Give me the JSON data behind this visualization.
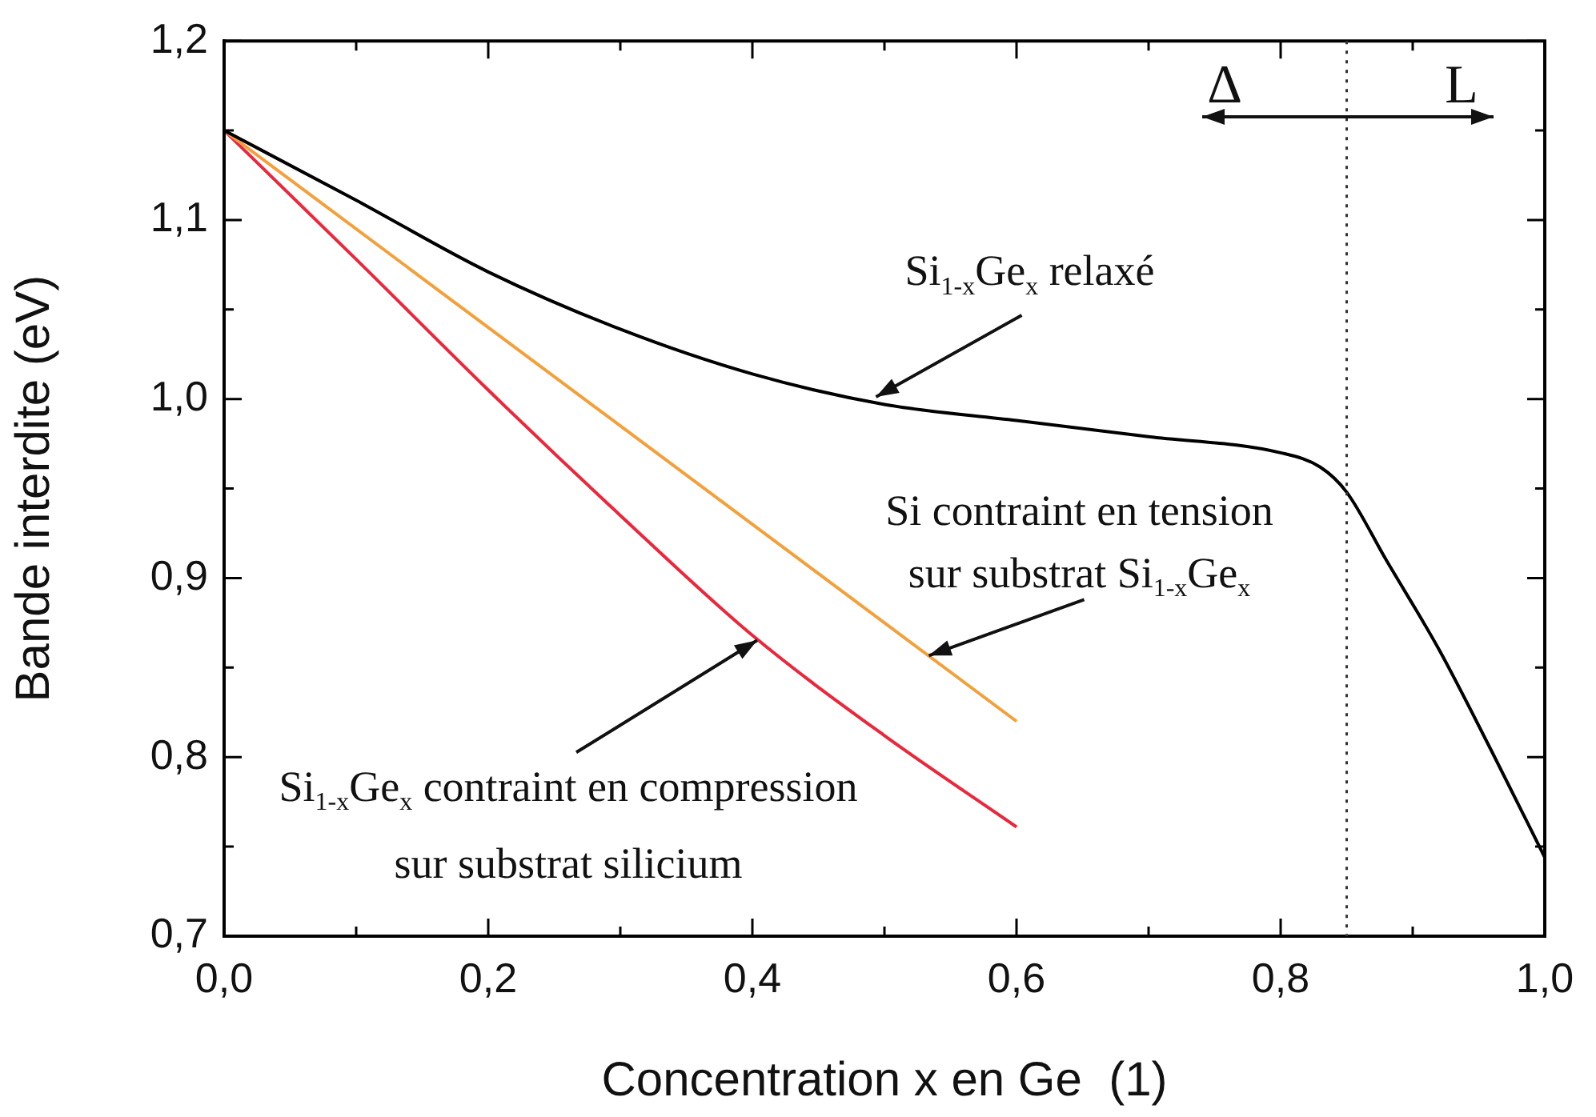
{
  "chart_data": {
    "type": "line",
    "xlabel": "Concentration x en Ge  (1)",
    "ylabel": "Bande interdite (eV)",
    "xlim": [
      0,
      1
    ],
    "xticks": [
      {
        "value": 0,
        "label": "0,0"
      },
      {
        "value": 0.1,
        "label": null
      },
      {
        "value": 0.2,
        "label": "0,2"
      },
      {
        "value": 0.3,
        "label": null
      },
      {
        "value": 0.4,
        "label": "0,4"
      },
      {
        "value": 0.5,
        "label": null
      },
      {
        "value": 0.6,
        "label": "0,6"
      },
      {
        "value": 0.7,
        "label": null
      },
      {
        "value": 0.8,
        "label": "0,8"
      },
      {
        "value": 0.9,
        "label": null
      },
      {
        "value": 1,
        "label": "1,0"
      }
    ],
    "ylim": [
      0.7,
      1.2
    ],
    "yticks": [
      {
        "value": 0.7,
        "label": "0,7"
      },
      {
        "value": 0.75,
        "label": null
      },
      {
        "value": 0.8,
        "label": "0,8"
      },
      {
        "value": 0.85,
        "label": null
      },
      {
        "value": 0.9,
        "label": "0,9"
      },
      {
        "value": 0.95,
        "label": null
      },
      {
        "value": 1,
        "label": "1,0"
      },
      {
        "value": 1.05,
        "label": null
      },
      {
        "value": 1.1,
        "label": "1,1"
      },
      {
        "value": 1.15,
        "label": null
      },
      {
        "value": 1.2,
        "label": "1,2"
      }
    ],
    "marker": "none",
    "line_style": "solid",
    "series": [
      {
        "color": "#000000",
        "x": [
          0,
          0.1,
          0.2,
          0.3,
          0.4,
          0.5,
          0.6,
          0.7,
          0.8,
          0.83,
          0.85,
          0.88,
          0.92,
          0.96,
          1.0
        ],
        "values": [
          1.15,
          1.111,
          1.071,
          1.039,
          1.014,
          0.997,
          0.988,
          0.979,
          0.97,
          0.962,
          0.948,
          0.91,
          0.86,
          0.803,
          0.744
        ]
      },
      {
        "color": "#f2a03c",
        "x": [
          0,
          0.6
        ],
        "values": [
          1.15,
          0.82
        ]
      },
      {
        "color": "#e8283c",
        "x": [
          0,
          0.1,
          0.2,
          0.3,
          0.4,
          0.5,
          0.6
        ],
        "values": [
          1.15,
          1.078,
          1.005,
          0.935,
          0.868,
          0.812,
          0.761
        ]
      }
    ],
    "ref_lines": [
      {
        "axis": "x",
        "value": 0.85,
        "color": "#333333",
        "line_style": "dotted"
      }
    ],
    "annotations": [
      {
        "text": "Si$_{1-x}$Ge$_{x}$ relaxé",
        "x": 0.49,
        "y": 1.003
      },
      {
        "text": "Si contraint en tension\nsur substrat Si$_{1-x}$Ge$_{x}$",
        "x": 0.53,
        "y": 0.8585
      },
      {
        "text": "Si$_{1-x}$Ge$_{x}$ contraint en compression\nsur substrat silicium",
        "x": 0.4,
        "y": 0.867
      },
      "Δ",
      "L"
    ]
  }
}
